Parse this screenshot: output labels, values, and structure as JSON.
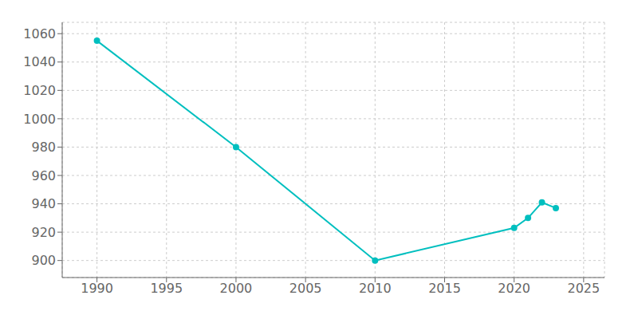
{
  "chart_data": {
    "type": "line",
    "x": [
      1990,
      2000,
      2010,
      2020,
      2021,
      2022,
      2023
    ],
    "values": [
      1055,
      980,
      900,
      923,
      930,
      941,
      937
    ],
    "color": "#00BFBF",
    "marker": "circle",
    "xlim": [
      1987.5,
      2026.5
    ],
    "ylim": [
      888,
      1068
    ],
    "xticks": [
      1990,
      1995,
      2000,
      2005,
      2010,
      2015,
      2020,
      2025
    ],
    "yticks": [
      900,
      920,
      940,
      960,
      980,
      1000,
      1020,
      1040,
      1060
    ],
    "grid": true
  }
}
